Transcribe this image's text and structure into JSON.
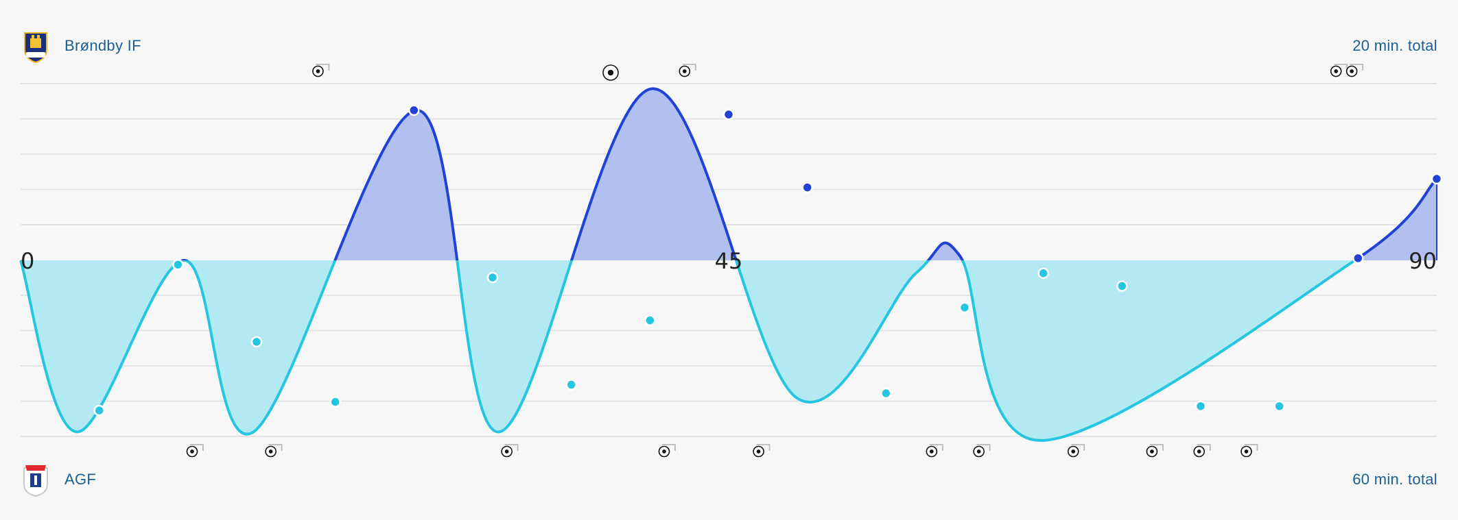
{
  "home_team": {
    "name": "Brøndby IF",
    "total": "20 min. total",
    "crest": "broendby-crest",
    "color": "#2043d6"
  },
  "away_team": {
    "name": "AGF",
    "total": "60 min. total",
    "crest": "agf-crest",
    "color": "#26c6e0"
  },
  "chart_data": {
    "type": "area",
    "x_ticks": [
      "0",
      "45",
      "90"
    ],
    "xlim": [
      0,
      90
    ],
    "ylim": [
      -5,
      5
    ],
    "grid": true,
    "series_colors": {
      "positive": "#2043d6",
      "positive_fill": "#b1c0ef",
      "negative": "#26c6e0",
      "negative_fill": "#b3e9f2"
    },
    "curve": [
      {
        "x": 0,
        "y": 0
      },
      {
        "x": 3.6,
        "y": -4
      },
      {
        "x": 10.4,
        "y": 0
      },
      {
        "x": 14.8,
        "y": -4
      },
      {
        "x": 25.2,
        "y": 3.5
      },
      {
        "x": 30.4,
        "y": -4
      },
      {
        "x": 40.1,
        "y": 4
      },
      {
        "x": 49.3,
        "y": -3.2
      },
      {
        "x": 56.9,
        "y": -0.3
      },
      {
        "x": 59.7,
        "y": 0.1
      },
      {
        "x": 64.8,
        "y": -4.2
      },
      {
        "x": 84.8,
        "y": 0
      },
      {
        "x": 90,
        "y": 1.9
      }
    ],
    "points": [
      {
        "x": 5,
        "y": -3.5,
        "team": "away"
      },
      {
        "x": 10,
        "y": -0.1,
        "team": "away"
      },
      {
        "x": 15,
        "y": -1.9,
        "team": "away"
      },
      {
        "x": 20,
        "y": -3.3,
        "team": "away"
      },
      {
        "x": 25,
        "y": 3.5,
        "team": "home"
      },
      {
        "x": 30,
        "y": -0.4,
        "team": "away"
      },
      {
        "x": 35,
        "y": -2.9,
        "team": "away"
      },
      {
        "x": 40,
        "y": -1.4,
        "team": "away"
      },
      {
        "x": 45,
        "y": 3.4,
        "team": "home"
      },
      {
        "x": 50,
        "y": 1.7,
        "team": "home"
      },
      {
        "x": 55,
        "y": -3.1,
        "team": "away"
      },
      {
        "x": 60,
        "y": -1.1,
        "team": "away"
      },
      {
        "x": 65,
        "y": -0.3,
        "team": "away"
      },
      {
        "x": 70,
        "y": -0.6,
        "team": "away"
      },
      {
        "x": 75,
        "y": -3.4,
        "team": "away"
      },
      {
        "x": 80,
        "y": -3.4,
        "team": "away"
      },
      {
        "x": 85,
        "y": 0.05,
        "team": "home"
      },
      {
        "x": 90,
        "y": 1.9,
        "team": "home"
      }
    ],
    "home_shots": [
      18.9,
      42.2,
      83.6,
      84.6
    ],
    "home_goals": [
      37.5
    ],
    "away_shots": [
      10.9,
      15.9,
      30.9,
      40.9,
      46.9,
      57.9,
      60.9,
      66.9,
      71.9,
      74.9,
      77.9
    ]
  }
}
